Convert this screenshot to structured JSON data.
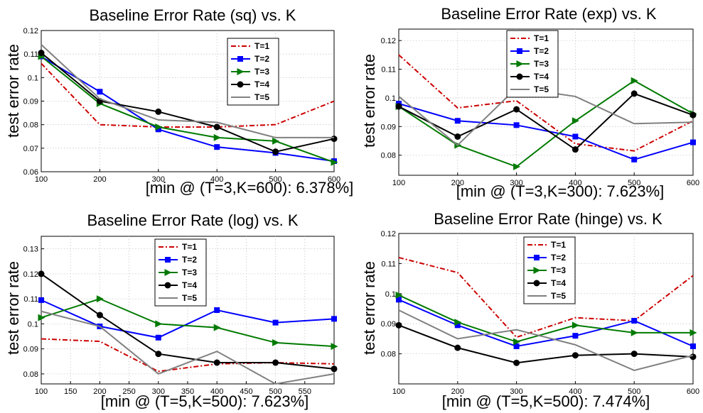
{
  "chart_data": [
    {
      "type": "line",
      "title": "Baseline Error Rate (sq) vs. K",
      "xlabel": "[min @ (T=3,K=600): 6.378%]",
      "ylabel": "test error rate",
      "x": [
        100,
        200,
        300,
        400,
        500,
        600
      ],
      "xlim": [
        100,
        600
      ],
      "ylim": [
        0.06,
        0.12
      ],
      "xticks": [
        100,
        200,
        300,
        400,
        500,
        600
      ],
      "yticks": [
        0.06,
        0.07,
        0.08,
        0.09,
        0.1,
        0.11,
        0.12
      ],
      "grid": true,
      "legend": "upper-right",
      "series": [
        {
          "name": "T=1",
          "values": [
            0.106,
            0.08,
            0.079,
            0.079,
            0.08,
            0.09
          ]
        },
        {
          "name": "T=2",
          "values": [
            0.109,
            0.094,
            0.078,
            0.0705,
            0.068,
            0.0645
          ]
        },
        {
          "name": "T=3",
          "values": [
            0.109,
            0.089,
            0.079,
            0.0745,
            0.073,
            0.064
          ]
        },
        {
          "name": "T=4",
          "values": [
            0.1105,
            0.09,
            0.0855,
            0.079,
            0.0685,
            0.074
          ]
        },
        {
          "name": "T=5",
          "values": [
            0.114,
            0.091,
            0.082,
            0.081,
            0.0745,
            0.0745
          ]
        }
      ]
    },
    {
      "type": "line",
      "title": "Baseline Error Rate (exp) vs. K",
      "xlabel": "[min @ (T=3,K=300): 7.623%]",
      "ylabel": "test error rate",
      "x": [
        100,
        200,
        300,
        400,
        500,
        600
      ],
      "xlim": [
        100,
        600
      ],
      "ylim": [
        0.073,
        0.124
      ],
      "xticks": [
        100,
        200,
        300,
        400,
        500,
        600
      ],
      "yticks": [
        0.08,
        0.09,
        0.1,
        0.11,
        0.12
      ],
      "grid": true,
      "legend": "upper-center",
      "series": [
        {
          "name": "T=1",
          "values": [
            0.115,
            0.0965,
            0.099,
            0.084,
            0.0815,
            0.092
          ]
        },
        {
          "name": "T=2",
          "values": [
            0.098,
            0.092,
            0.0905,
            0.0865,
            0.0785,
            0.0845
          ]
        },
        {
          "name": "T=3",
          "values": [
            0.097,
            0.0835,
            0.076,
            0.092,
            0.106,
            0.0945
          ]
        },
        {
          "name": "T=4",
          "values": [
            0.097,
            0.0865,
            0.096,
            0.082,
            0.1015,
            0.094
          ]
        },
        {
          "name": "T=5",
          "values": [
            0.1005,
            0.0835,
            0.1035,
            0.1005,
            0.091,
            0.0915
          ]
        }
      ]
    },
    {
      "type": "line",
      "title": "Baseline Error Rate (log) vs. K",
      "xlabel": "[min @ (T=5,K=500): 7.623%]",
      "ylabel": "test error rate",
      "x": [
        100,
        200,
        300,
        400,
        500,
        600
      ],
      "xlim": [
        100,
        600
      ],
      "ylim": [
        0.076,
        0.135
      ],
      "xticks": [
        100,
        150,
        200,
        250,
        300,
        350,
        400,
        450,
        500,
        550
      ],
      "yticks": [
        0.08,
        0.09,
        0.1,
        0.11,
        0.12,
        0.13
      ],
      "grid": true,
      "legend": "upper-center",
      "series": [
        {
          "name": "T=1",
          "values": [
            0.094,
            0.093,
            0.081,
            0.084,
            0.0845,
            0.084
          ]
        },
        {
          "name": "T=2",
          "values": [
            0.1095,
            0.099,
            0.0945,
            0.1055,
            0.1005,
            0.102
          ]
        },
        {
          "name": "T=3",
          "values": [
            0.1025,
            0.11,
            0.1,
            0.0985,
            0.0925,
            0.091
          ]
        },
        {
          "name": "T=4",
          "values": [
            0.12,
            0.1035,
            0.088,
            0.0845,
            0.0845,
            0.082
          ]
        },
        {
          "name": "T=5",
          "values": [
            0.105,
            0.099,
            0.08,
            0.089,
            0.076,
            0.08
          ]
        }
      ]
    },
    {
      "type": "line",
      "title": "Baseline Error Rate (hinge) vs. K",
      "xlabel": "[min @ (T=5,K=500): 7.474%]",
      "ylabel": "test error rate",
      "x": [
        100,
        200,
        300,
        400,
        500,
        600
      ],
      "xlim": [
        100,
        600
      ],
      "ylim": [
        0.07,
        0.12
      ],
      "xticks": [
        100,
        200,
        300,
        400,
        500,
        600
      ],
      "yticks": [
        0.08,
        0.09,
        0.1,
        0.11,
        0.12
      ],
      "grid": true,
      "legend": "upper-center",
      "series": [
        {
          "name": "T=1",
          "values": [
            0.112,
            0.107,
            0.0855,
            0.092,
            0.091,
            0.106
          ]
        },
        {
          "name": "T=2",
          "values": [
            0.098,
            0.0895,
            0.0825,
            0.086,
            0.091,
            0.0825
          ]
        },
        {
          "name": "T=3",
          "values": [
            0.0995,
            0.0905,
            0.084,
            0.0895,
            0.087,
            0.087
          ]
        },
        {
          "name": "T=4",
          "values": [
            0.0895,
            0.082,
            0.077,
            0.0795,
            0.08,
            0.079
          ]
        },
        {
          "name": "T=5",
          "values": [
            0.0945,
            0.085,
            0.088,
            0.083,
            0.0745,
            0.0795
          ]
        }
      ]
    }
  ],
  "series_styles": [
    {
      "color": "#cc0000",
      "dash": "dashdot",
      "marker": "none"
    },
    {
      "color": "#0000ff",
      "dash": "solid",
      "marker": "square"
    },
    {
      "color": "#007a00",
      "dash": "solid",
      "marker": "triangle-right"
    },
    {
      "color": "#000000",
      "dash": "solid",
      "marker": "circle"
    },
    {
      "color": "#808080",
      "dash": "solid",
      "marker": "none"
    }
  ]
}
